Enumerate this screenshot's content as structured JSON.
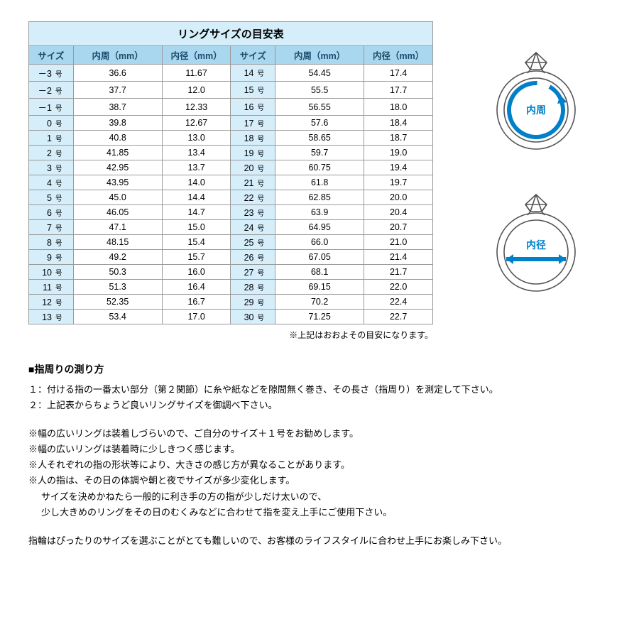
{
  "table": {
    "title": "リングサイズの目安表",
    "headers": [
      "サイズ",
      "内周（mm）",
      "内径（mm）",
      "サイズ",
      "内周（mm）",
      "内径（mm）"
    ],
    "size_unit": "号",
    "rows": [
      [
        "－3",
        "36.6",
        "11.67",
        "14",
        "54.45",
        "17.4"
      ],
      [
        "－2",
        "37.7",
        "12.0",
        "15",
        "55.5",
        "17.7"
      ],
      [
        "－1",
        "38.7",
        "12.33",
        "16",
        "56.55",
        "18.0"
      ],
      [
        "0",
        "39.8",
        "12.67",
        "17",
        "57.6",
        "18.4"
      ],
      [
        "1",
        "40.8",
        "13.0",
        "18",
        "58.65",
        "18.7"
      ],
      [
        "2",
        "41.85",
        "13.4",
        "19",
        "59.7",
        "19.0"
      ],
      [
        "3",
        "42.95",
        "13.7",
        "20",
        "60.75",
        "19.4"
      ],
      [
        "4",
        "43.95",
        "14.0",
        "21",
        "61.8",
        "19.7"
      ],
      [
        "5",
        "45.0",
        "14.4",
        "22",
        "62.85",
        "20.0"
      ],
      [
        "6",
        "46.05",
        "14.7",
        "23",
        "63.9",
        "20.4"
      ],
      [
        "7",
        "47.1",
        "15.0",
        "24",
        "64.95",
        "20.7"
      ],
      [
        "8",
        "48.15",
        "15.4",
        "25",
        "66.0",
        "21.0"
      ],
      [
        "9",
        "49.2",
        "15.7",
        "26",
        "67.05",
        "21.4"
      ],
      [
        "10",
        "50.3",
        "16.0",
        "27",
        "68.1",
        "21.7"
      ],
      [
        "11",
        "51.3",
        "16.4",
        "28",
        "69.15",
        "22.0"
      ],
      [
        "12",
        "52.35",
        "16.7",
        "29",
        "70.2",
        "22.4"
      ],
      [
        "13",
        "53.4",
        "17.0",
        "30",
        "71.25",
        "22.7"
      ]
    ],
    "footnote": "※上記はおおよその目安になります。",
    "col_widths_pct": [
      11,
      22,
      17,
      11,
      22,
      17
    ]
  },
  "diagrams": {
    "circumference_label": "内周",
    "diameter_label": "内径",
    "label_color": "#0080c9",
    "stroke_color": "#555555",
    "arrow_color": "#0080c9"
  },
  "text": {
    "heading": "■指周りの測り方",
    "step1": "１：付ける指の一番太い部分（第２関節）に糸や紙などを隙間無く巻き、その長さ（指周り）を測定して下さい。",
    "step2": "２：上記表からちょうど良いリングサイズを御調べ下さい。",
    "note1": "※幅の広いリングは装着しづらいので、ご自分のサイズ＋１号をお勧めします。",
    "note2": "※幅の広いリングは装着時に少しきつく感じます。",
    "note3": "※人それぞれの指の形状等により、大きさの感じ方が異なることがあります。",
    "note4": "※人の指は、その日の体調や朝と夜でサイズが多少変化します。",
    "note5": "サイズを決めかねたら一般的に利き手の方の指が少しだけ太いので、",
    "note6": "少し大きめのリングをその日のむくみなどに合わせて指を変え上手にご使用下さい。",
    "closing": "指輪はぴったりのサイズを選ぶことがとても難しいので、お客様のライフスタイルに合わせ上手にお楽しみ下さい。"
  },
  "colors": {
    "title_bg": "#d5eefa",
    "header_bg": "#a9d7ef",
    "size_bg": "#d5eefa",
    "border": "#9a9a9a",
    "header_text": "#1a4d6b"
  }
}
